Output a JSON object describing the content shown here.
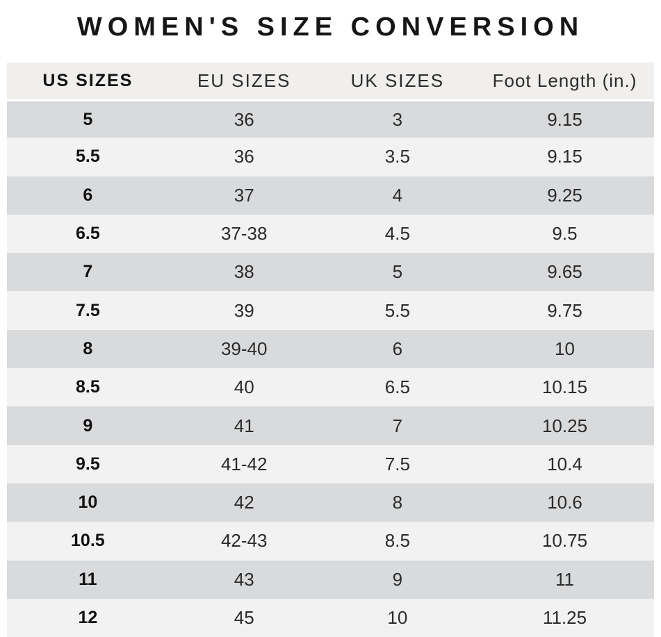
{
  "title": "WOMEN'S SIZE CONVERSION",
  "chart_data": {
    "type": "table",
    "title": "WOMEN'S SIZE CONVERSION",
    "columns": [
      "US SIZES",
      "EU SIZES",
      "UK SIZES",
      "Foot Length (in.)"
    ],
    "rows": [
      [
        "5",
        "36",
        "3",
        "9.15"
      ],
      [
        "5.5",
        "36",
        "3.5",
        "9.15"
      ],
      [
        "6",
        "37",
        "4",
        "9.25"
      ],
      [
        "6.5",
        "37-38",
        "4.5",
        "9.5"
      ],
      [
        "7",
        "38",
        "5",
        "9.65"
      ],
      [
        "7.5",
        "39",
        "5.5",
        "9.75"
      ],
      [
        "8",
        "39-40",
        "6",
        "10"
      ],
      [
        "8.5",
        "40",
        "6.5",
        "10.15"
      ],
      [
        "9",
        "41",
        "7",
        "10.25"
      ],
      [
        "9.5",
        "41-42",
        "7.5",
        "10.4"
      ],
      [
        "10",
        "42",
        "8",
        "10.6"
      ],
      [
        "10.5",
        "42-43",
        "8.5",
        "10.75"
      ],
      [
        "11",
        "43",
        "9",
        "11"
      ],
      [
        "12",
        "45",
        "10",
        "11.25"
      ]
    ],
    "layout": {
      "row_striping": "alternating starting dark",
      "first_column_bold": true
    }
  },
  "colors": {
    "title_text": "#161616",
    "header_bg": "#f0efed",
    "row_dark": "#d9dadc",
    "row_light": "#f2f2f2",
    "cell_text": "#2b2b2b"
  }
}
